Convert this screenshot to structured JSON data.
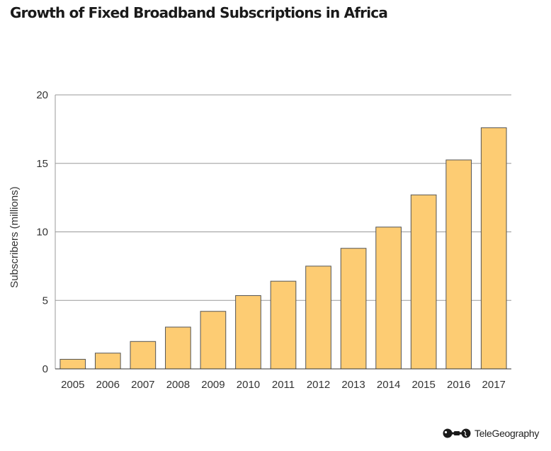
{
  "chart_data": {
    "type": "bar",
    "title": "Growth of Fixed Broadband Subscriptions in Africa",
    "xlabel": "",
    "ylabel": "Subscribers (millions)",
    "ylim": [
      0,
      20
    ],
    "yticks": [
      0,
      5,
      10,
      15,
      20
    ],
    "grid": true,
    "categories": [
      "2005",
      "2006",
      "2007",
      "2008",
      "2009",
      "2010",
      "2011",
      "2012",
      "2013",
      "2014",
      "2015",
      "2016",
      "2017"
    ],
    "values": [
      0.7,
      1.15,
      2.0,
      3.05,
      4.2,
      5.35,
      6.4,
      7.5,
      8.8,
      10.35,
      12.7,
      15.25,
      17.6
    ],
    "colors": {
      "bar_fill": "#FDCC73",
      "bar_stroke": "#555555",
      "grid": "#999999",
      "axis": "#333333"
    }
  },
  "branding": {
    "logo_text": "TeleGeography"
  }
}
